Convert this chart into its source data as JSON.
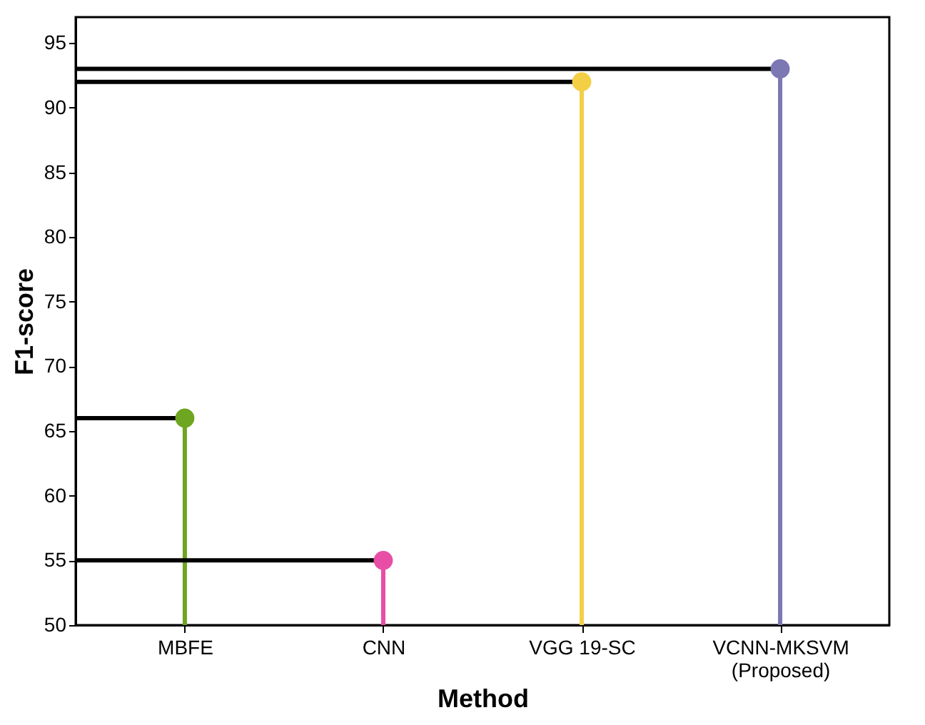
{
  "chart_data": {
    "type": "lollipop",
    "xlabel": "Method",
    "ylabel": "F1-score",
    "categories": [
      "MBFE",
      "CNN",
      "VGG 19-SC",
      "VCNN-MKSVM\n(Proposed)"
    ],
    "values": [
      66,
      55,
      92,
      93
    ],
    "colors": [
      "#6ea521",
      "#e84ea6",
      "#f3cf45",
      "#7b78b4"
    ],
    "ref_lines": [
      {
        "axis": "y",
        "value": 66,
        "color": "#000000"
      },
      {
        "axis": "y",
        "value": 55,
        "color": "#000000"
      },
      {
        "axis": "y",
        "value": 92,
        "color": "#000000"
      },
      {
        "axis": "y",
        "value": 93,
        "color": "#000000"
      }
    ],
    "ylim": [
      50,
      97
    ],
    "yticks": [
      50,
      55,
      60,
      65,
      70,
      75,
      80,
      85,
      90,
      95
    ],
    "grid": false,
    "marker": "circle"
  }
}
